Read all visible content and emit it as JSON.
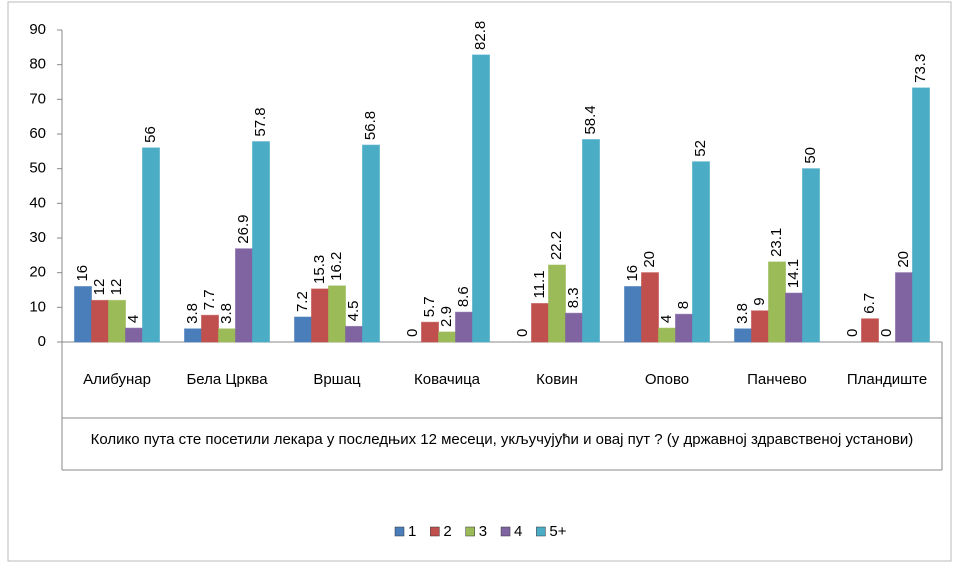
{
  "chart_data": {
    "type": "bar",
    "x_label": "Колико пута сте посетили лекара у последњих 12 месеци, укључујући и овај пут ? (у државној здравственој установи)",
    "categories": [
      "Алибунар",
      "Бела Црква",
      "Вршац",
      "Ковачица",
      "Ковин",
      "Опово",
      "Панчево",
      "Пландиште"
    ],
    "series": [
      {
        "name": "1",
        "color": "#4a7ebb",
        "values": [
          16,
          3.8,
          7.2,
          0,
          0,
          16,
          3.8,
          0
        ]
      },
      {
        "name": "2",
        "color": "#c0504d",
        "values": [
          12,
          7.7,
          15.3,
          5.7,
          11.1,
          20,
          9,
          6.7
        ]
      },
      {
        "name": "3",
        "color": "#9bbb59",
        "values": [
          12,
          3.8,
          16.2,
          2.9,
          22.2,
          4,
          23.1,
          0
        ]
      },
      {
        "name": "4",
        "color": "#8064a2",
        "values": [
          4,
          26.9,
          4.5,
          8.6,
          8.3,
          8,
          14.1,
          20
        ]
      },
      {
        "name": "5+",
        "color": "#4bacc6",
        "values": [
          56,
          57.8,
          56.8,
          82.8,
          58.4,
          52,
          50,
          73.3
        ]
      }
    ],
    "ylim": [
      0,
      90
    ],
    "yticks": [
      0,
      10,
      20,
      30,
      40,
      50,
      60,
      70,
      80,
      90
    ]
  }
}
